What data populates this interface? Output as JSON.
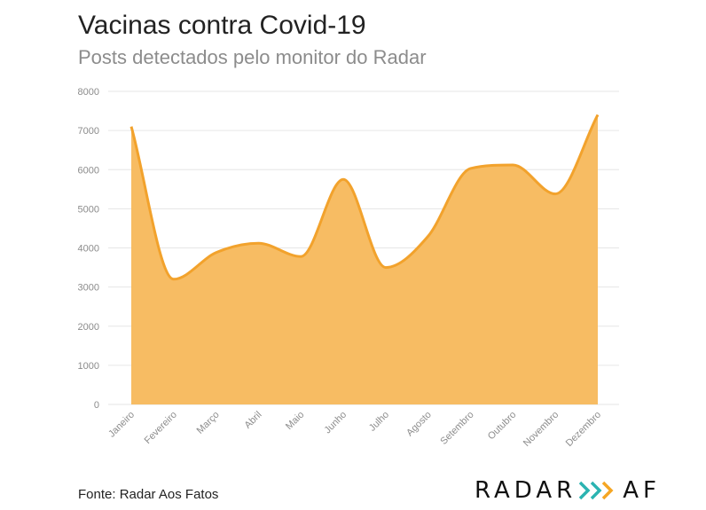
{
  "header": {
    "title": "Vacinas contra Covid-19",
    "subtitle": "Posts detectados pelo monitor do Radar"
  },
  "footer": {
    "source": "Fonte: Radar Aos Fatos",
    "logo_left": "RADAR",
    "logo_right": "AF",
    "logo_arrow_colors": [
      "#2bb3b1",
      "#2bb3b1",
      "#f5a623"
    ]
  },
  "colors": {
    "area_fill": "#f7bc63",
    "line": "#f2a22c",
    "grid": "#e6e6e6"
  },
  "chart_data": {
    "type": "area",
    "title": "Vacinas contra Covid-19",
    "subtitle": "Posts detectados pelo monitor do Radar",
    "categories": [
      "Janeiro",
      "Fevereiro",
      "Março",
      "Abril",
      "Maio",
      "Junho",
      "Julho",
      "Agosto",
      "Setembro",
      "Outubro",
      "Novembro",
      "Dezembro"
    ],
    "series": [
      {
        "values": [
          7100,
          3200,
          3880,
          4120,
          3780,
          5750,
          3500,
          4300,
          6030,
          6120,
          5380,
          7400
        ]
      }
    ],
    "y_ticks": [
      0,
      1000,
      2000,
      3000,
      4000,
      5000,
      6000,
      7000,
      8000
    ],
    "ylim": [
      0,
      8000
    ],
    "xlabel": "",
    "ylabel": "",
    "grid": true,
    "legend": "none"
  }
}
